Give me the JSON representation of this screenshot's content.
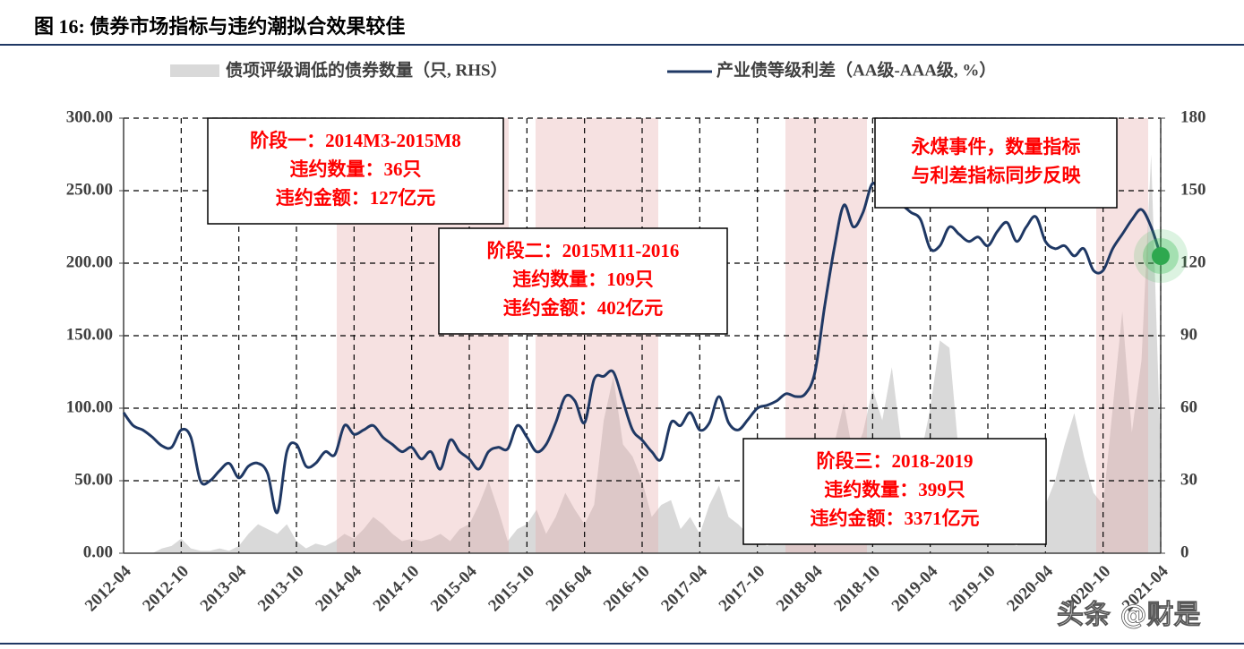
{
  "title": "图 16:  债券市场指标与违约潮拟合效果较佳",
  "watermark": "头条 @财是",
  "chart_data": {
    "type": "line-area",
    "categories": [
      "2012-04",
      null,
      null,
      null,
      null,
      null,
      "2012-10",
      null,
      null,
      null,
      null,
      null,
      "2013-04",
      null,
      null,
      null,
      null,
      null,
      "2013-10",
      null,
      null,
      null,
      null,
      null,
      "2014-04",
      null,
      null,
      null,
      null,
      null,
      "2014-10",
      null,
      null,
      null,
      null,
      null,
      "2015-04",
      null,
      null,
      null,
      null,
      null,
      "2015-10",
      null,
      null,
      null,
      null,
      null,
      "2016-04",
      null,
      null,
      null,
      null,
      null,
      "2016-10",
      null,
      null,
      null,
      null,
      null,
      "2017-04",
      null,
      null,
      null,
      null,
      null,
      "2017-10",
      null,
      null,
      null,
      null,
      null,
      "2018-04",
      null,
      null,
      null,
      null,
      null,
      "2018-10",
      null,
      null,
      null,
      null,
      null,
      "2019-04",
      null,
      null,
      null,
      null,
      null,
      "2019-10",
      null,
      null,
      null,
      null,
      null,
      "2020-04",
      null,
      null,
      null,
      null,
      null,
      "2020-10",
      null,
      null,
      null,
      null,
      null,
      "2021-04"
    ],
    "series": [
      {
        "name": "债项评级调低的债券数量（只, RHS）",
        "type": "area",
        "axis": "y2",
        "color": "#d9d9d9",
        "values": [
          0,
          0,
          0,
          0,
          2,
          3,
          6,
          2,
          1,
          1,
          2,
          1,
          3,
          8,
          12,
          10,
          8,
          12,
          5,
          2,
          4,
          3,
          5,
          8,
          6,
          10,
          15,
          12,
          8,
          5,
          6,
          5,
          6,
          8,
          5,
          10,
          12,
          20,
          30,
          18,
          5,
          10,
          12,
          18,
          8,
          15,
          25,
          18,
          12,
          20,
          55,
          73,
          45,
          40,
          30,
          15,
          20,
          22,
          10,
          15,
          8,
          20,
          28,
          15,
          12,
          8,
          6,
          3,
          5,
          8,
          10,
          18,
          30,
          22,
          45,
          62,
          40,
          50,
          68,
          55,
          77,
          45,
          30,
          40,
          60,
          88,
          85,
          40,
          30,
          25,
          20,
          10,
          5,
          3,
          8,
          12,
          20,
          30,
          45,
          58,
          40,
          25,
          20,
          60,
          100,
          50,
          80,
          165,
          40
        ]
      },
      {
        "name": "产业债等级利差（AA级-AAA级, %）",
        "type": "line",
        "color": "#1f3864",
        "values": [
          97,
          88,
          85,
          80,
          74,
          73,
          85,
          80,
          50,
          50,
          57,
          62,
          52,
          60,
          62,
          55,
          28,
          70,
          75,
          60,
          62,
          70,
          68,
          88,
          82,
          85,
          88,
          80,
          75,
          70,
          73,
          65,
          70,
          58,
          78,
          70,
          65,
          58,
          70,
          73,
          72,
          88,
          80,
          70,
          75,
          90,
          108,
          105,
          90,
          120,
          122,
          125,
          105,
          85,
          78,
          70,
          65,
          90,
          88,
          97,
          85,
          90,
          108,
          90,
          85,
          92,
          100,
          102,
          105,
          110,
          108,
          110,
          125,
          170,
          210,
          240,
          225,
          235,
          255,
          245,
          240,
          240,
          235,
          230,
          210,
          212,
          225,
          220,
          215,
          218,
          212,
          222,
          228,
          215,
          225,
          232,
          215,
          210,
          212,
          205,
          210,
          195,
          195,
          210,
          220,
          230,
          237,
          225,
          205
        ]
      }
    ],
    "ylim": [
      0,
      300
    ],
    "yticks": [
      {
        "value": 0,
        "label": "0.00"
      },
      {
        "value": 50,
        "label": "50.00"
      },
      {
        "value": 100,
        "label": "100.00"
      },
      {
        "value": 150,
        "label": "150.00"
      },
      {
        "value": 200,
        "label": "200.00"
      },
      {
        "value": 250,
        "label": "250.00"
      },
      {
        "value": 300,
        "label": "300.00"
      }
    ],
    "y2lim": [
      0,
      180
    ],
    "y2ticks": [
      0,
      30,
      60,
      90,
      120,
      150,
      180
    ],
    "grid": true,
    "annotations": [
      {
        "lines": [
          "阶段一：2014M3-2015M8",
          "违约数量：36只",
          "违约金额：127亿元"
        ]
      },
      {
        "lines": [
          "阶段二：2015M11-2016",
          "违约数量：109只",
          "违约金额：402亿元"
        ]
      },
      {
        "lines": [
          "阶段三：2018-2019",
          "违约数量：399只",
          "违约金额：3371亿元"
        ]
      },
      {
        "lines": [
          "永煤事件，数量指标",
          "与利差指标同步反映"
        ]
      }
    ]
  }
}
